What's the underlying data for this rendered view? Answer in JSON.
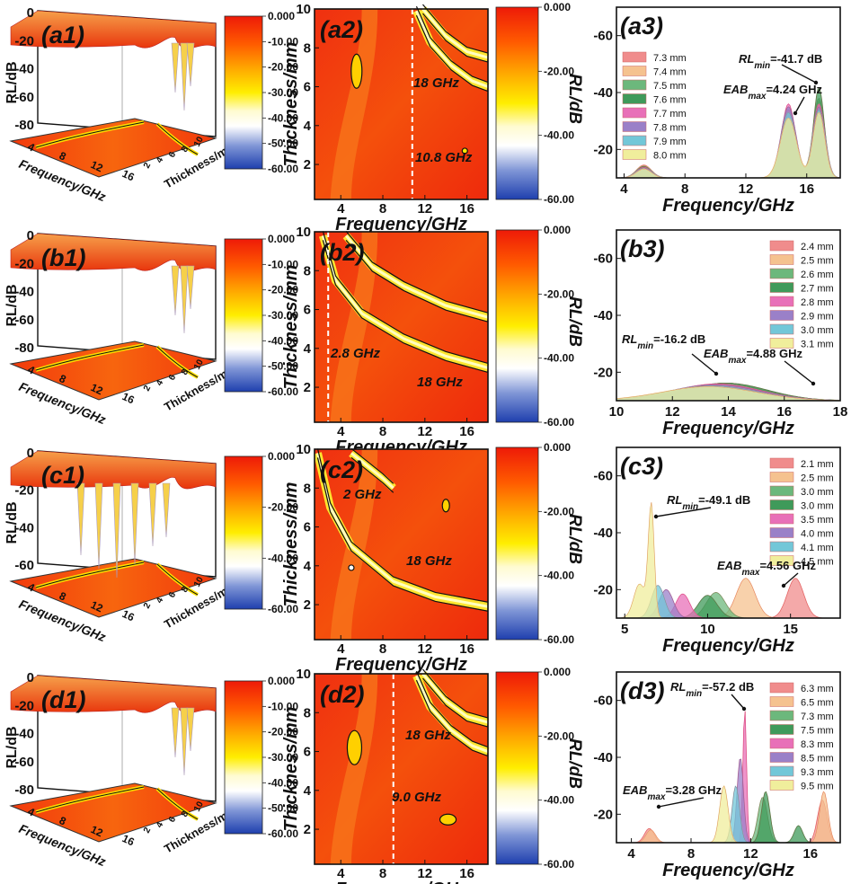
{
  "colors": {
    "scale": [
      "#1e3fae",
      "#ffffff",
      "#ffe000",
      "#ff7800",
      "#ee1a08"
    ],
    "surface": "#f24a0b",
    "dash": "#ffffff"
  },
  "rows": [
    {
      "label3d": "(a1)",
      "yl3d": "RL/dB",
      "xl3d": "Frequency/GHz",
      "zl3d": "Thickness/mm",
      "zticks3d": [
        "0",
        "-20",
        "-40",
        "-60",
        "-80"
      ],
      "fticks3d": [
        "4",
        "8",
        "12",
        "16"
      ],
      "tticks3d": [
        "2",
        "4",
        "6",
        "8",
        "10"
      ],
      "cbar1": [
        "0.000",
        "-10.00",
        "-20.00",
        "-30.00",
        "-40.00",
        "-50.00",
        "-60.00"
      ],
      "label2d": "(a2)",
      "xlab2d": "Frequency/GHz",
      "ylab2d": "Thickness/mm",
      "xticks2d": [
        "4",
        "8",
        "12",
        "16"
      ],
      "yticks2d": [
        "2",
        "4",
        "6",
        "8",
        "10"
      ],
      "cbar2": [
        "0.000",
        "-20.00",
        "-40.00",
        "-60.00"
      ],
      "cbar2title": "RL/dB",
      "notes2d": [
        "18 GHz",
        "10.8 GHz"
      ],
      "label3": "(a3)",
      "xlab3": "Frequency/GHz",
      "xticks3": [
        "4",
        "8",
        "12",
        "16"
      ],
      "yticks3": [
        "-60",
        "-40",
        "-20"
      ],
      "ann1": "RL_min=-41.7 dB",
      "ann2": "EAB_max=4.24 GHz"
    },
    {
      "label3d": "(b1)",
      "yl3d": "RL/dB",
      "xl3d": "Frequency/GHz",
      "zl3d": "Thickness/mm",
      "zticks3d": [
        "0",
        "-20",
        "-40",
        "-60",
        "-80"
      ],
      "fticks3d": [
        "4",
        "8",
        "12",
        "16"
      ],
      "tticks3d": [
        "2",
        "4",
        "6",
        "8",
        "10"
      ],
      "cbar1": [
        "0.000",
        "-10.00",
        "-20.00",
        "-30.00",
        "-40.00",
        "-50.00",
        "-60.00"
      ],
      "label2d": "(b2)",
      "xlab2d": "Frequency/GHz",
      "ylab2d": "Thickness/mm",
      "xticks2d": [
        "4",
        "8",
        "12",
        "16"
      ],
      "yticks2d": [
        "2",
        "4",
        "6",
        "8",
        "10"
      ],
      "cbar2": [
        "0.000",
        "-20.00",
        "-40.00",
        "-60.00"
      ],
      "cbar2title": "RL/dB",
      "notes2d": [
        "2.8 GHz",
        "18 GHz"
      ],
      "label3": "(b3)",
      "xlab3": "Frequency/GHz",
      "xticks3": [
        "10",
        "12",
        "14",
        "16",
        "18"
      ],
      "yticks3": [
        "-60",
        "-40",
        "-20"
      ],
      "ann1": "RL_min=-16.2 dB",
      "ann2": "EAB_max=4.88 GHz"
    },
    {
      "label3d": "(c1)",
      "yl3d": "RL/dB",
      "xl3d": "Frequency/GHz",
      "zl3d": "Thickness/mm",
      "zticks3d": [
        "0",
        "-20",
        "-40",
        "-60"
      ],
      "fticks3d": [
        "4",
        "8",
        "12",
        "16"
      ],
      "tticks3d": [
        "2",
        "4",
        "6",
        "8",
        "10"
      ],
      "cbar1": [
        "0.000",
        "-20.00",
        "-40.00",
        "-60.00"
      ],
      "label2d": "(c2)",
      "xlab2d": "Frequency/GHz",
      "ylab2d": "Thickness/mm",
      "xticks2d": [
        "4",
        "8",
        "12",
        "16"
      ],
      "yticks2d": [
        "2",
        "4",
        "6",
        "8",
        "10"
      ],
      "cbar2": [
        "0.000",
        "-20.00",
        "-40.00",
        "-60.00"
      ],
      "cbar2title": "RL/dB",
      "notes2d": [
        "2 GHz",
        "18 GHz"
      ],
      "label3": "(c3)",
      "xlab3": "Frequency/GHz",
      "xticks3": [
        "5",
        "10",
        "15"
      ],
      "yticks3": [
        "-60",
        "-40",
        "-20"
      ],
      "ann1": "RL_min=-49.1 dB",
      "ann2": "EAB_max=4.56 GHz"
    },
    {
      "label3d": "(d1)",
      "yl3d": "RL/dB",
      "xl3d": "Frequency/GHz",
      "zl3d": "Thickness/mm",
      "zticks3d": [
        "0",
        "-20",
        "-40",
        "-60",
        "-80"
      ],
      "fticks3d": [
        "4",
        "8",
        "12",
        "16"
      ],
      "tticks3d": [
        "2",
        "4",
        "6",
        "8",
        "10"
      ],
      "cbar1": [
        "0.000",
        "-10.00",
        "-20.00",
        "-30.00",
        "-40.00",
        "-50.00",
        "-60.00"
      ],
      "label2d": "(d2)",
      "xlab2d": "Frequency/GHz",
      "ylab2d": "Thickness/mm",
      "xticks2d": [
        "4",
        "8",
        "12",
        "16"
      ],
      "yticks2d": [
        "2",
        "4",
        "6",
        "8",
        "10"
      ],
      "cbar2": [
        "0.000",
        "-20.00",
        "-40.00",
        "-60.00"
      ],
      "cbar2title": "RL/dB",
      "notes2d": [
        "18 GHz",
        "9.0 GHz"
      ],
      "label3": "(d3)",
      "xlab3": "Frequency/GHz",
      "xticks3": [
        "4",
        "8",
        "12",
        "16"
      ],
      "yticks3": [
        "-60",
        "-40",
        "-20"
      ],
      "ann1": "RL_min=-57.2 dB",
      "ann2": "EAB_max=3.28 GHz"
    }
  ],
  "chart_data": [
    {
      "type": "area",
      "panel": "a3",
      "xlabel": "Frequency/GHz",
      "ylabel": "",
      "xlim": [
        3.5,
        18.2
      ],
      "ylim": [
        -70,
        -10
      ],
      "annotations": [
        "RL_min=-41.7 dB",
        "EAB_max=4.24 GHz"
      ],
      "series": [
        {
          "name": "7.3 mm",
          "color": "#f08c8c",
          "peaks": [
            [
              5.3,
              -14.5,
              0.7
            ],
            [
              14.8,
              -34,
              0.7
            ],
            [
              16.8,
              -36,
              0.55
            ]
          ]
        },
        {
          "name": "7.4 mm",
          "color": "#f5c28f",
          "peaks": [
            [
              5.3,
              -14.3,
              0.7
            ],
            [
              14.8,
              -33,
              0.7
            ],
            [
              16.8,
              -37,
              0.55
            ]
          ]
        },
        {
          "name": "7.5 mm",
          "color": "#6cb87c",
          "peaks": [
            [
              5.3,
              -14.1,
              0.7
            ],
            [
              14.8,
              -32,
              0.7
            ],
            [
              16.8,
              -38,
              0.55
            ]
          ]
        },
        {
          "name": "7.6 mm",
          "color": "#3f9a5a",
          "peaks": [
            [
              5.3,
              -13.9,
              0.7
            ],
            [
              14.8,
              -34,
              0.7
            ],
            [
              16.8,
              -41.7,
              0.5
            ]
          ]
        },
        {
          "name": "7.7 mm",
          "color": "#e870b8",
          "peaks": [
            [
              5.3,
              -13.7,
              0.7
            ],
            [
              14.8,
              -36,
              0.65
            ],
            [
              16.8,
              -36,
              0.55
            ]
          ]
        },
        {
          "name": "7.8 mm",
          "color": "#9a80c8",
          "peaks": [
            [
              5.3,
              -13.5,
              0.7
            ],
            [
              14.8,
              -35,
              0.7
            ],
            [
              16.8,
              -35,
              0.55
            ]
          ]
        },
        {
          "name": "7.9 mm",
          "color": "#72c7d8",
          "peaks": [
            [
              5.3,
              -13.3,
              0.7
            ],
            [
              14.8,
              -33,
              0.7
            ],
            [
              16.8,
              -34,
              0.55
            ]
          ]
        },
        {
          "name": "8.0 mm",
          "color": "#f0ee9c",
          "peaks": [
            [
              5.3,
              -13.1,
              0.7
            ],
            [
              14.8,
              -31,
              0.75
            ],
            [
              16.8,
              -33,
              0.55
            ]
          ]
        }
      ]
    },
    {
      "type": "area",
      "panel": "b3",
      "xlabel": "Frequency/GHz",
      "ylabel": "",
      "xlim": [
        10,
        18
      ],
      "ylim": [
        -70,
        -10
      ],
      "annotations": [
        "RL_min=-16.2 dB",
        "EAB_max=4.88 GHz"
      ],
      "series": [
        {
          "name": "2.4 mm",
          "color": "#f08c8c",
          "peaks": [
            [
              13.8,
              -15.4,
              2.2
            ]
          ]
        },
        {
          "name": "2.5 mm",
          "color": "#f5c28f",
          "peaks": [
            [
              13.8,
              -15.6,
              2.2
            ]
          ]
        },
        {
          "name": "2.6 mm",
          "color": "#6cb87c",
          "peaks": [
            [
              13.9,
              -15.8,
              2.1
            ]
          ]
        },
        {
          "name": "2.7 mm",
          "color": "#3f9a5a",
          "peaks": [
            [
              13.9,
              -16.2,
              2.1
            ]
          ]
        },
        {
          "name": "2.8 mm",
          "color": "#e870b8",
          "peaks": [
            [
              13.6,
              -15.9,
              2.2
            ]
          ]
        },
        {
          "name": "2.9 mm",
          "color": "#9a80c8",
          "peaks": [
            [
              13.5,
              -15.6,
              2.3
            ]
          ]
        },
        {
          "name": "3.0 mm",
          "color": "#72c7d8",
          "peaks": [
            [
              13.4,
              -15.2,
              2.3
            ]
          ]
        },
        {
          "name": "3.1 mm",
          "color": "#f0ee9c",
          "peaks": [
            [
              13.3,
              -14.9,
              2.4
            ]
          ]
        }
      ]
    },
    {
      "type": "area",
      "panel": "c3",
      "xlabel": "Frequency/GHz",
      "ylabel": "",
      "xlim": [
        4.5,
        18
      ],
      "ylim": [
        -70,
        -10
      ],
      "annotations": [
        "RL_min=-49.1 dB",
        "EAB_max=4.56 GHz"
      ],
      "series": [
        {
          "name": "2.1 mm",
          "color": "#f08c8c",
          "peaks": [
            [
              15.3,
              -24,
              0.7
            ]
          ]
        },
        {
          "name": "2.5 mm",
          "color": "#f5c28f",
          "peaks": [
            [
              12.3,
              -24,
              0.8
            ]
          ]
        },
        {
          "name": "3.0 mm",
          "color": "#6cb87c",
          "peaks": [
            [
              10.5,
              -19,
              0.8
            ]
          ]
        },
        {
          "name": "3.0 mm",
          "color": "#3f9a5a",
          "peaks": [
            [
              10.0,
              -18,
              0.8
            ]
          ]
        },
        {
          "name": "3.5 mm",
          "color": "#e870b8",
          "peaks": [
            [
              8.5,
              -18.5,
              0.6
            ]
          ]
        },
        {
          "name": "4.0 mm",
          "color": "#9a80c8",
          "peaks": [
            [
              7.5,
              -20,
              0.6
            ]
          ]
        },
        {
          "name": "4.1 mm",
          "color": "#72c7d8",
          "peaks": [
            [
              7.0,
              -21.5,
              0.55
            ]
          ]
        },
        {
          "name": "4.5 mm",
          "color": "#f0ee9c",
          "peaks": [
            [
              6.6,
              -49.1,
              0.25
            ],
            [
              5.9,
              -22,
              0.5
            ]
          ]
        }
      ]
    },
    {
      "type": "area",
      "panel": "d3",
      "xlabel": "Frequency/GHz",
      "ylabel": "",
      "xlim": [
        3.0,
        18.0
      ],
      "ylim": [
        -70,
        -10
      ],
      "annotations": [
        "RL_min=-57.2 dB",
        "EAB_max=3.28 GHz"
      ],
      "series": [
        {
          "name": "6.3 mm",
          "color": "#f08c8c",
          "peaks": [
            [
              5.2,
              -15,
              0.45
            ],
            [
              16.8,
              -25,
              0.45
            ]
          ]
        },
        {
          "name": "6.5 mm",
          "color": "#f5c28f",
          "peaks": [
            [
              5.3,
              -14.5,
              0.45
            ],
            [
              16.9,
              -28,
              0.4
            ]
          ]
        },
        {
          "name": "7.3 mm",
          "color": "#6cb87c",
          "peaks": [
            [
              12.8,
              -26,
              0.45
            ]
          ]
        },
        {
          "name": "7.5 mm",
          "color": "#3f9a5a",
          "peaks": [
            [
              13.0,
              -28,
              0.4
            ],
            [
              15.2,
              -16,
              0.4
            ]
          ]
        },
        {
          "name": "8.3 mm",
          "color": "#e870b8",
          "peaks": [
            [
              11.6,
              -57.2,
              0.17
            ]
          ]
        },
        {
          "name": "8.5 mm",
          "color": "#9a80c8",
          "peaks": [
            [
              11.3,
              -40,
              0.3
            ]
          ]
        },
        {
          "name": "9.3 mm",
          "color": "#72c7d8",
          "peaks": [
            [
              11.0,
              -30,
              0.35
            ]
          ]
        },
        {
          "name": "9.5 mm",
          "color": "#f0ee9c",
          "peaks": [
            [
              10.2,
              -30,
              0.4
            ]
          ]
        }
      ]
    }
  ]
}
